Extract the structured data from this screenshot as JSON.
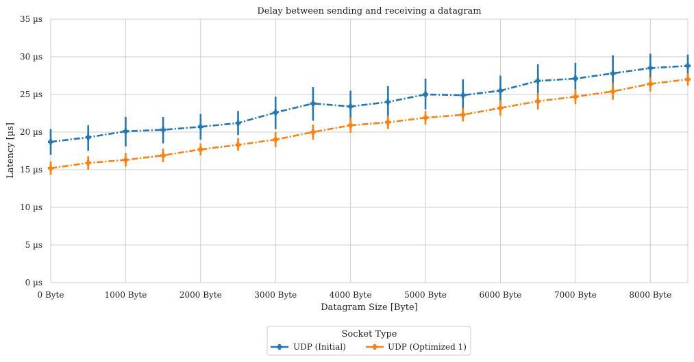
{
  "chart_data": {
    "type": "line",
    "title": "Delay between sending and receiving a datagram",
    "xlabel": "Datagram Size [Byte]",
    "ylabel": "Latency [µs]",
    "xlim": [
      0,
      8500
    ],
    "ylim": [
      0,
      35
    ],
    "x_ticks": [
      0,
      1000,
      2000,
      3000,
      4000,
      5000,
      6000,
      7000,
      8000
    ],
    "x_tick_labels": [
      "0 Byte",
      "1000 Byte",
      "2000 Byte",
      "3000 Byte",
      "4000 Byte",
      "5000 Byte",
      "6000 Byte",
      "7000 Byte",
      "8000 Byte"
    ],
    "y_ticks": [
      0,
      5,
      10,
      15,
      20,
      25,
      30,
      35
    ],
    "y_tick_labels": [
      "0 µs",
      "5 µs",
      "10 µs",
      "15 µs",
      "20 µs",
      "25 µs",
      "30 µs",
      "35 µs"
    ],
    "grid": true,
    "legend": {
      "title": "Socket Type",
      "placement": "bottom-center"
    },
    "x": [
      0,
      500,
      1000,
      1500,
      2000,
      2500,
      3000,
      3500,
      4000,
      4500,
      5000,
      5500,
      6000,
      6500,
      7000,
      7500,
      8000,
      8500
    ],
    "series": [
      {
        "name": "UDP (Initial)",
        "color": "#1f77b4",
        "values": [
          18.7,
          19.3,
          20.1,
          20.3,
          20.7,
          21.2,
          22.6,
          23.8,
          23.4,
          24.0,
          25.0,
          24.9,
          25.5,
          26.8,
          27.1,
          27.8,
          28.5,
          28.8
        ],
        "err_low": [
          17.0,
          17.5,
          18.1,
          18.5,
          19.0,
          19.6,
          20.4,
          21.5,
          21.3,
          22.0,
          23.0,
          22.8,
          23.5,
          24.6,
          25.0,
          25.4,
          26.6,
          27.2
        ],
        "err_high": [
          20.4,
          20.9,
          22.0,
          22.0,
          22.4,
          22.8,
          24.7,
          26.0,
          25.5,
          26.1,
          27.1,
          27.0,
          27.5,
          29.0,
          29.2,
          30.2,
          30.4,
          30.3
        ]
      },
      {
        "name": "UDP (Optimized 1)",
        "color": "#ff7f0e",
        "values": [
          15.2,
          15.9,
          16.3,
          16.9,
          17.7,
          18.3,
          19.0,
          20.0,
          20.9,
          21.3,
          21.9,
          22.3,
          23.2,
          24.1,
          24.7,
          25.4,
          26.4,
          27.0
        ],
        "err_low": [
          14.3,
          15.0,
          15.4,
          16.0,
          16.9,
          17.5,
          18.0,
          19.0,
          19.9,
          20.4,
          21.0,
          21.4,
          22.2,
          23.0,
          23.7,
          24.3,
          25.4,
          26.2
        ],
        "err_high": [
          16.1,
          16.8,
          17.2,
          17.8,
          18.5,
          19.2,
          20.0,
          21.0,
          21.9,
          22.2,
          22.8,
          23.2,
          24.2,
          25.2,
          25.7,
          26.5,
          27.3,
          27.8
        ]
      }
    ]
  }
}
